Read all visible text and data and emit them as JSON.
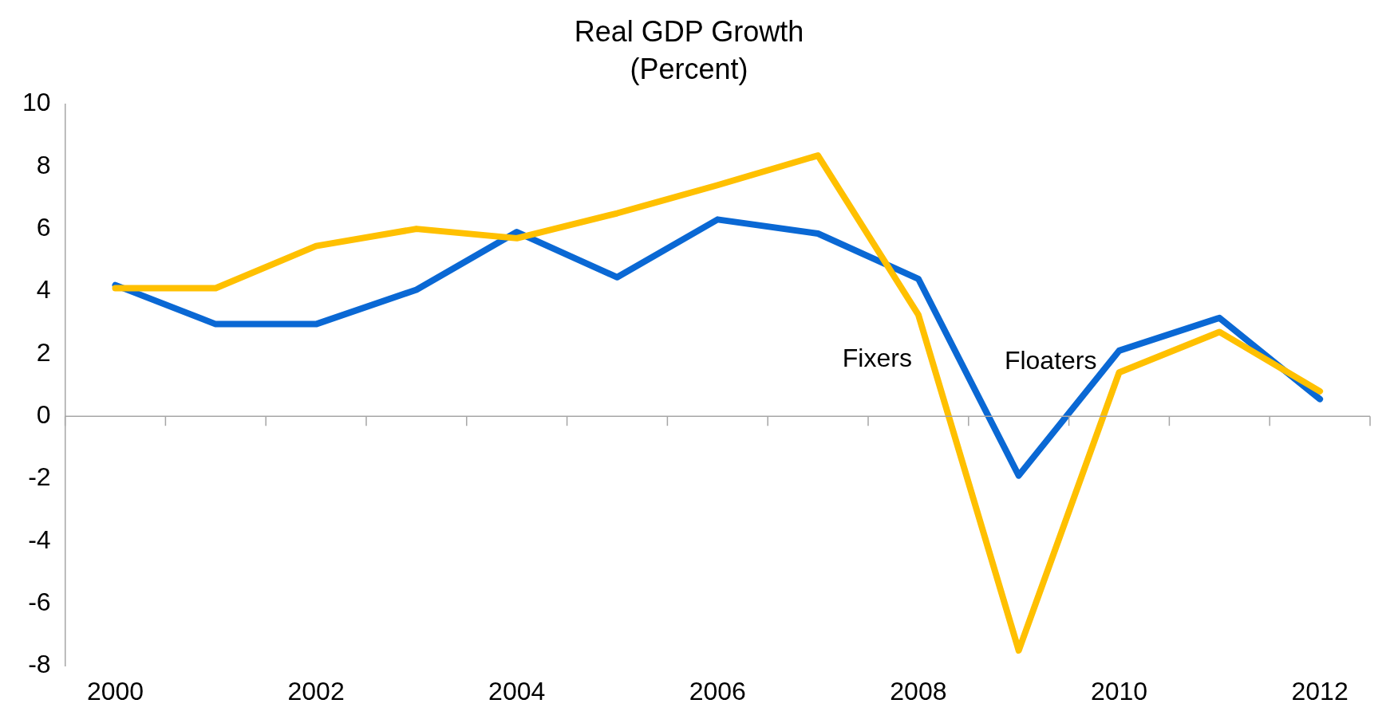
{
  "chart_data": {
    "type": "line",
    "title": "Real GDP Growth",
    "subtitle": "(Percent)",
    "categories": [
      "2000",
      null,
      "2002",
      null,
      "2004",
      null,
      "2006",
      null,
      "2008",
      null,
      "2010",
      null,
      "2012"
    ],
    "series": [
      {
        "name": "Fixers",
        "color": "#ffc000",
        "values": [
          4.1,
          4.1,
          5.45,
          6.0,
          5.7,
          6.5,
          7.4,
          8.35,
          3.25,
          -7.5,
          1.4,
          2.7,
          0.8
        ]
      },
      {
        "name": "Floaters",
        "color": "#0a68d4",
        "values": [
          4.2,
          2.95,
          2.95,
          4.05,
          5.9,
          4.45,
          6.3,
          5.85,
          4.4,
          -1.9,
          2.1,
          3.15,
          0.55
        ]
      }
    ],
    "ylim": [
      -8,
      10
    ],
    "yticks": [
      -8,
      -6,
      -4,
      -2,
      0,
      2,
      4,
      6,
      8,
      10
    ],
    "ref_lines": [
      {
        "axis": "y",
        "value": 0,
        "color": "#a6a6a6"
      }
    ],
    "grid": false,
    "legend": false,
    "marker": "none",
    "line_style": "solid"
  }
}
